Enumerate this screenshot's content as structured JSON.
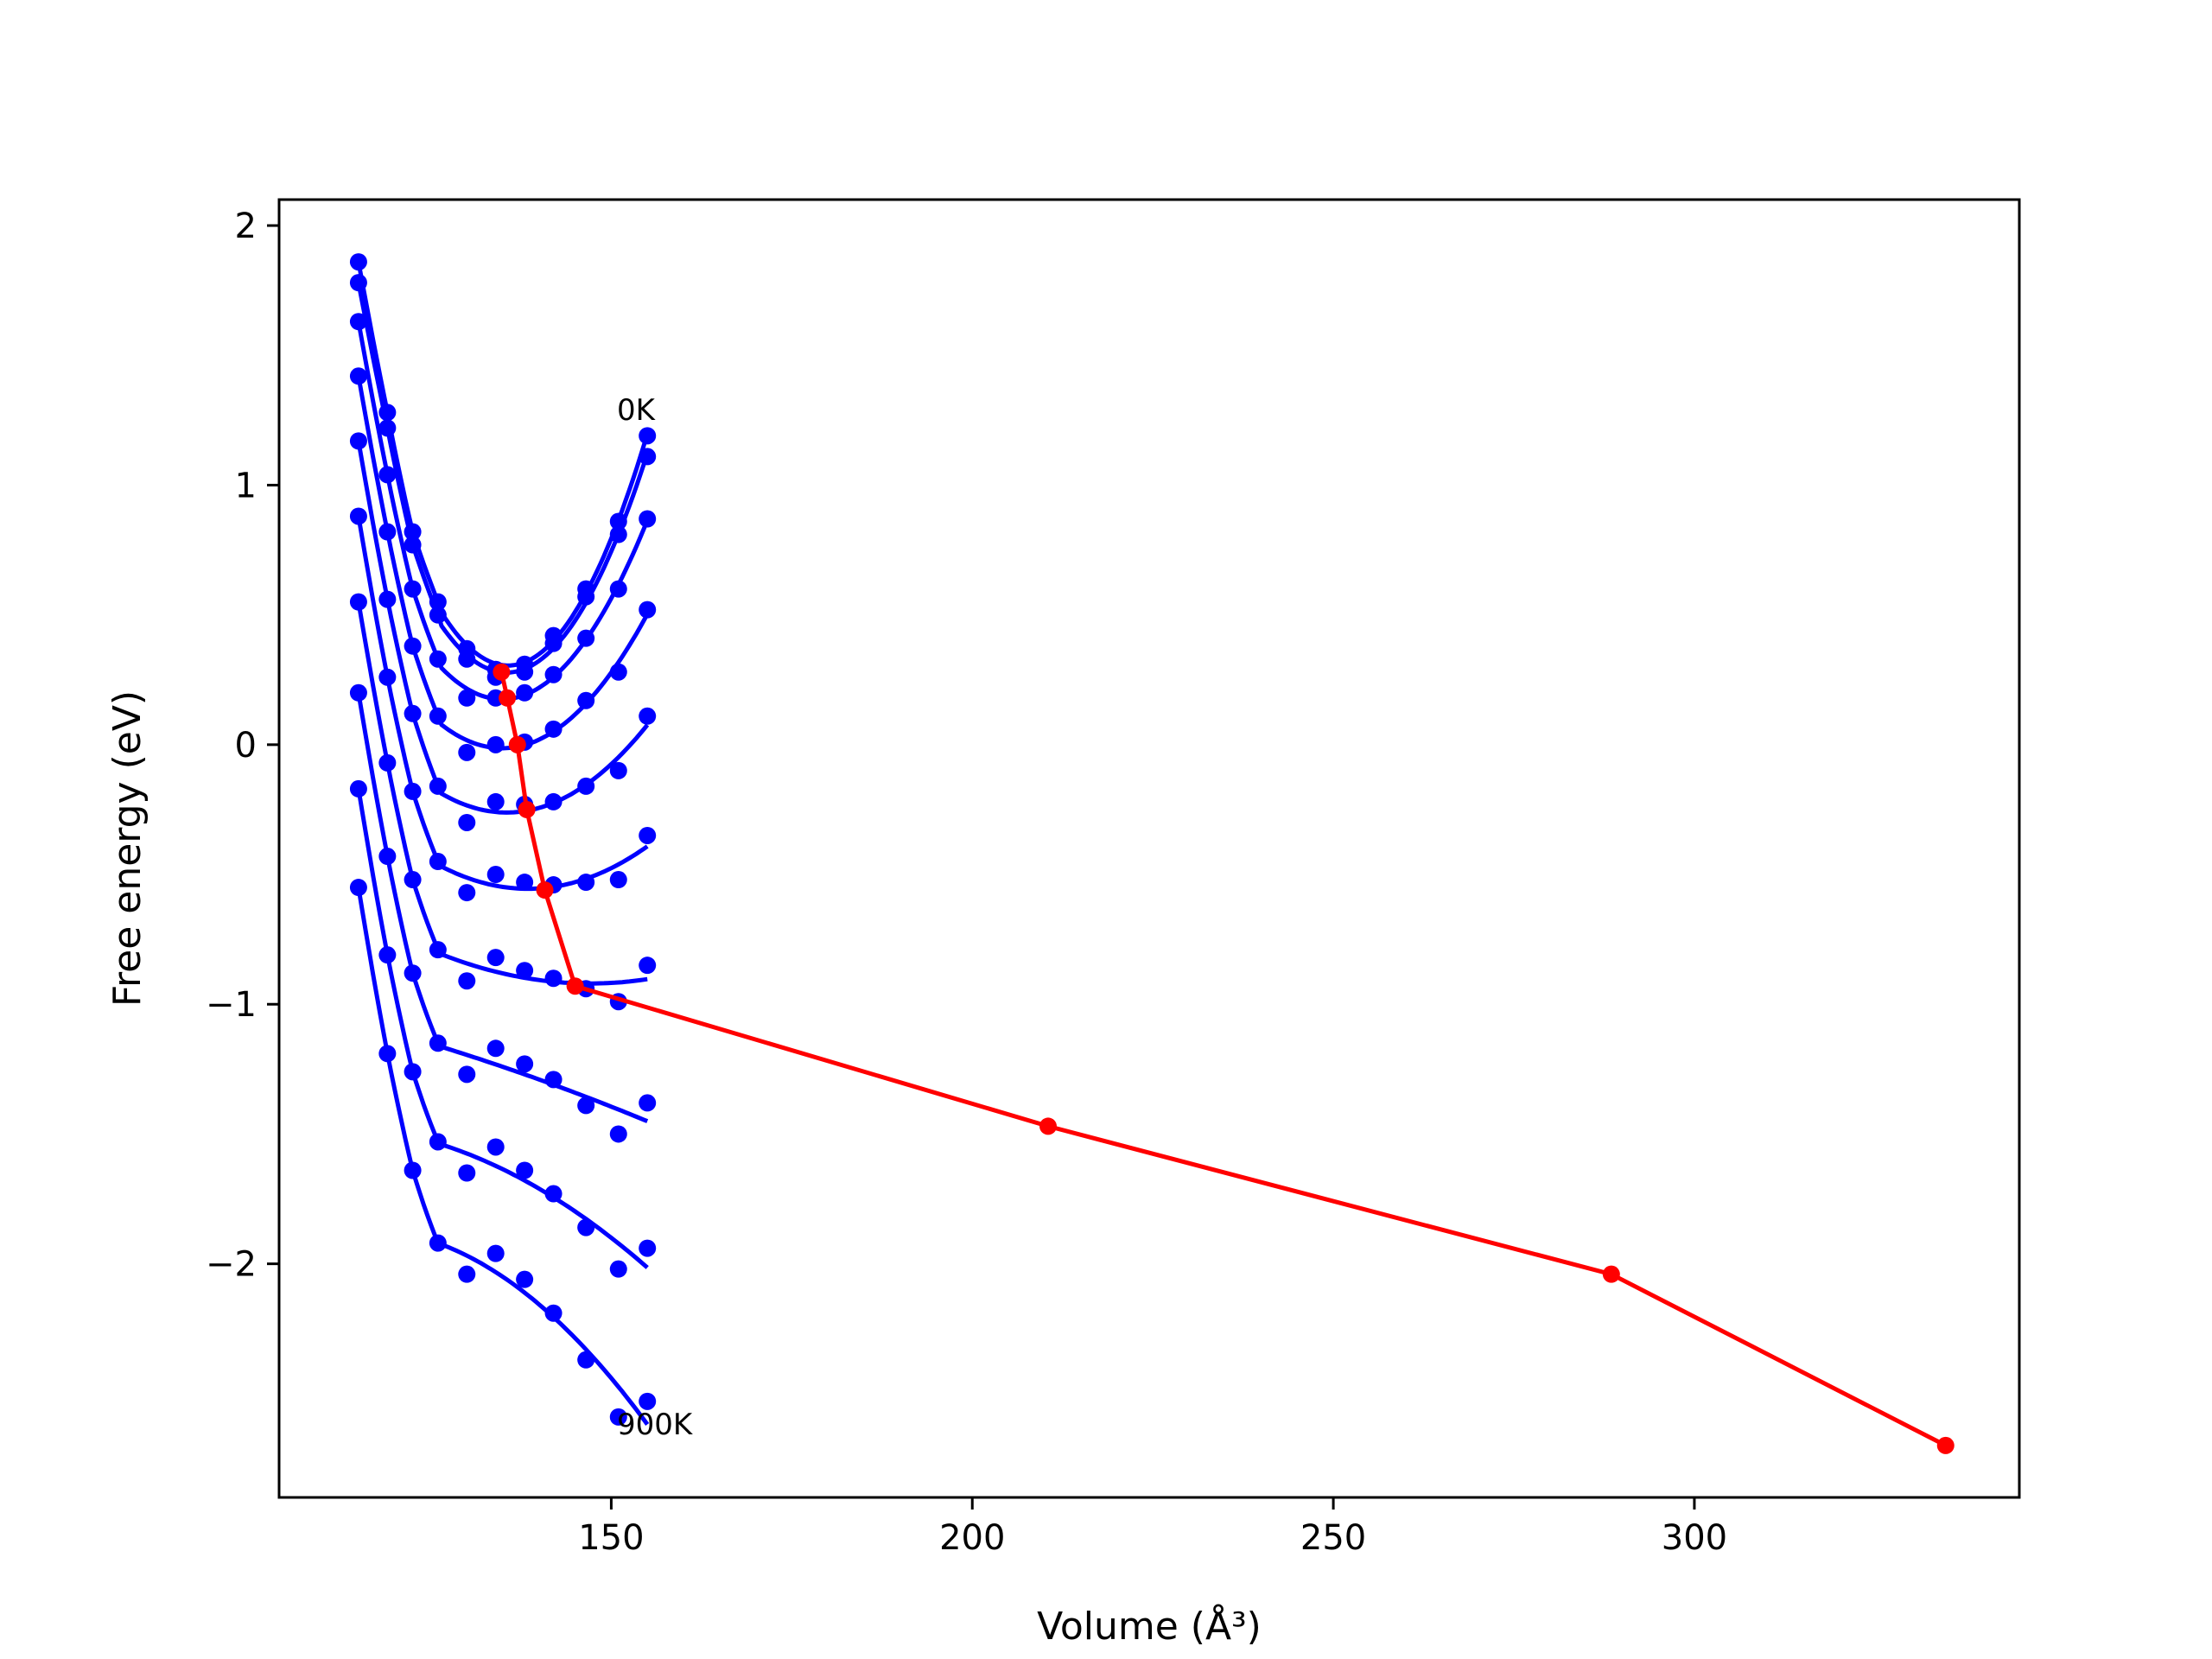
{
  "chart_data": {
    "type": "line",
    "xlabel": "Volume (Å³)",
    "ylabel": "Free energy (eV)",
    "xlim": [
      104,
      345
    ],
    "ylim": [
      -2.9,
      2.1
    ],
    "xticks": [
      150,
      200,
      250,
      300
    ],
    "yticks": [
      2,
      1,
      0,
      -1,
      -2
    ],
    "xtick_labels": [
      "150",
      "200",
      "250",
      "300"
    ],
    "ytick_labels": [
      "2",
      "1",
      "0",
      "−1",
      "−2"
    ],
    "grid": false,
    "annotations": [
      {
        "text": "0K",
        "x": 150.8,
        "y": 1.25
      },
      {
        "text": "900K",
        "x": 150.8,
        "y": -2.67
      }
    ],
    "points_x": [
      115,
      119,
      122.5,
      126,
      130,
      134,
      138,
      142,
      146.5,
      151,
      155
    ],
    "series": [
      {
        "color": "#0000ff",
        "values": [
          1.86,
          1.28,
          0.82,
          0.55,
          0.37,
          0.29,
          0.31,
          0.42,
          0.6,
          0.86,
          1.19
        ]
      },
      {
        "color": "#0000ff",
        "values": [
          1.78,
          1.22,
          0.77,
          0.5,
          0.33,
          0.26,
          0.28,
          0.39,
          0.57,
          0.81,
          1.11
        ]
      },
      {
        "color": "#0000ff",
        "values": [
          1.63,
          1.04,
          0.6,
          0.33,
          0.18,
          0.18,
          0.2,
          0.27,
          0.41,
          0.6,
          0.87
        ]
      },
      {
        "color": "#0000ff",
        "values": [
          1.42,
          0.82,
          0.38,
          0.11,
          -0.03,
          0.0,
          0.01,
          0.06,
          0.17,
          0.28,
          0.52
        ]
      },
      {
        "color": "#0000ff",
        "values": [
          1.17,
          0.56,
          0.12,
          -0.16,
          -0.3,
          -0.22,
          -0.23,
          -0.22,
          -0.16,
          -0.1,
          0.11
        ]
      },
      {
        "color": "#0000ff",
        "values": [
          0.88,
          0.26,
          -0.18,
          -0.45,
          -0.57,
          -0.5,
          -0.53,
          -0.54,
          -0.53,
          -0.52,
          -0.35
        ]
      },
      {
        "color": "#0000ff",
        "values": [
          0.55,
          -0.07,
          -0.52,
          -0.79,
          -0.91,
          -0.82,
          -0.87,
          -0.9,
          -0.94,
          -0.99,
          -0.85
        ]
      },
      {
        "color": "#0000ff",
        "values": [
          0.2,
          -0.43,
          -0.88,
          -1.15,
          -1.27,
          -1.17,
          -1.23,
          -1.29,
          -1.39,
          -1.5,
          -1.38
        ]
      },
      {
        "color": "#0000ff",
        "values": [
          -0.17,
          -0.81,
          -1.26,
          -1.53,
          -1.65,
          -1.55,
          -1.64,
          -1.73,
          -1.86,
          -2.02,
          -1.94
        ]
      },
      {
        "color": "#0000ff",
        "values": [
          -0.55,
          -1.19,
          -1.64,
          -1.92,
          -2.04,
          -1.96,
          -2.06,
          -2.19,
          -2.37,
          -2.59,
          -2.53
        ]
      }
    ],
    "minima": {
      "color": "#ff0000",
      "x": [
        134.8,
        135.6,
        137,
        138.3,
        140.8,
        145,
        210.5,
        288.5,
        334.8
      ],
      "y": [
        0.28,
        0.18,
        0.0,
        -0.25,
        -0.56,
        -0.93,
        -1.47,
        -2.04,
        -2.7
      ]
    }
  }
}
